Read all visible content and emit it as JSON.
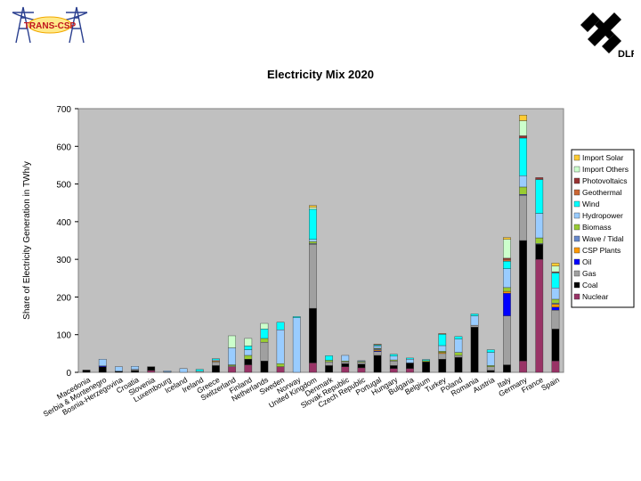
{
  "logos": {
    "left_text": "TRANS-CSP",
    "right_text": "DLR"
  },
  "chart_data": {
    "type": "bar",
    "stacked": true,
    "title": "Electricity Mix 2020",
    "xlabel": "",
    "ylabel": "Share of Electricity Generation in TWh/y",
    "ylim": [
      0,
      700
    ],
    "yticks": [
      0,
      100,
      200,
      300,
      400,
      500,
      600,
      700
    ],
    "grid": false,
    "plot_background": "#c0c0c0",
    "legend_position": "right",
    "categories": [
      "Macedonia",
      "Serbia & Montenegro",
      "Bosnia-Herzegovina",
      "Croatia",
      "Slovenia",
      "Luxembourg",
      "Iceland",
      "Ireland",
      "Greece",
      "Switzerland",
      "Finland",
      "Netherlands",
      "Sweden",
      "Norway",
      "United Kingdom",
      "Denmark",
      "Slovak Republic",
      "Czech Republic",
      "Portugal",
      "Hungary",
      "Bulgaria",
      "Belgium",
      "Turkey",
      "Poland",
      "Romania",
      "Austria",
      "Italy",
      "Germany",
      "France",
      "Spain"
    ],
    "series": [
      {
        "name": "Nuclear",
        "color": "#993366",
        "values": [
          0,
          0,
          0,
          0,
          5,
          0,
          0,
          0,
          0,
          15,
          20,
          0,
          15,
          0,
          25,
          0,
          15,
          12,
          0,
          10,
          10,
          0,
          0,
          0,
          0,
          0,
          0,
          30,
          300,
          30
        ]
      },
      {
        "name": "Coal",
        "color": "#000000",
        "values": [
          6,
          15,
          3,
          5,
          10,
          1,
          0,
          0,
          18,
          0,
          15,
          30,
          0,
          0,
          145,
          18,
          8,
          10,
          45,
          8,
          15,
          28,
          35,
          40,
          120,
          5,
          20,
          320,
          40,
          85
        ]
      },
      {
        "name": "Gas",
        "color": "#a0a0a0",
        "values": [
          0,
          0,
          0,
          3,
          0,
          0,
          0,
          3,
          10,
          2,
          0,
          50,
          0,
          0,
          170,
          10,
          5,
          5,
          10,
          12,
          0,
          0,
          15,
          5,
          5,
          10,
          130,
          120,
          0,
          50
        ]
      },
      {
        "name": "Oil",
        "color": "#0000ff",
        "values": [
          0,
          2,
          0,
          0,
          0,
          0,
          0,
          0,
          0,
          0,
          0,
          0,
          0,
          0,
          0,
          0,
          0,
          0,
          2,
          0,
          0,
          0,
          0,
          0,
          0,
          0,
          60,
          2,
          0,
          8
        ]
      },
      {
        "name": "CSP Plants",
        "color": "#ff9900",
        "values": [
          0,
          0,
          0,
          0,
          0,
          0,
          0,
          0,
          2,
          0,
          0,
          0,
          0,
          0,
          0,
          0,
          0,
          0,
          3,
          0,
          0,
          0,
          3,
          0,
          0,
          0,
          5,
          0,
          0,
          8
        ]
      },
      {
        "name": "Wave / Tidal",
        "color": "#6688cc",
        "values": [
          0,
          0,
          0,
          0,
          0,
          0,
          0,
          0,
          0,
          0,
          0,
          0,
          0,
          0,
          2,
          0,
          0,
          0,
          2,
          0,
          0,
          0,
          0,
          0,
          0,
          0,
          0,
          0,
          2,
          3
        ]
      },
      {
        "name": "Biomass",
        "color": "#99cc33",
        "values": [
          0,
          0,
          0,
          0,
          0,
          0,
          0,
          0,
          0,
          3,
          10,
          10,
          8,
          0,
          5,
          4,
          2,
          2,
          2,
          3,
          0,
          3,
          3,
          8,
          0,
          3,
          10,
          20,
          15,
          10
        ]
      },
      {
        "name": "Hydropower",
        "color": "#99ccff",
        "values": [
          0,
          18,
          12,
          8,
          0,
          3,
          10,
          0,
          3,
          45,
          15,
          0,
          90,
          145,
          6,
          0,
          15,
          2,
          6,
          10,
          10,
          0,
          15,
          35,
          25,
          35,
          50,
          30,
          65,
          30
        ]
      },
      {
        "name": "Wind",
        "color": "#00ffff",
        "values": [
          0,
          0,
          0,
          0,
          0,
          0,
          0,
          5,
          3,
          0,
          10,
          25,
          20,
          3,
          80,
          12,
          0,
          0,
          3,
          5,
          3,
          3,
          30,
          7,
          5,
          7,
          20,
          100,
          90,
          40
        ]
      },
      {
        "name": "Geothermal",
        "color": "#cc6633",
        "values": [
          0,
          0,
          0,
          0,
          0,
          0,
          0,
          0,
          0,
          0,
          0,
          0,
          0,
          0,
          0,
          0,
          0,
          0,
          2,
          0,
          0,
          0,
          2,
          0,
          0,
          0,
          5,
          0,
          0,
          0
        ]
      },
      {
        "name": "Photovoltaics",
        "color": "#993333",
        "values": [
          0,
          0,
          0,
          0,
          0,
          0,
          0,
          0,
          0,
          0,
          0,
          0,
          0,
          0,
          0,
          0,
          0,
          0,
          0,
          0,
          0,
          0,
          0,
          0,
          0,
          0,
          3,
          6,
          5,
          3
        ]
      },
      {
        "name": "Import Others",
        "color": "#ccffcc",
        "values": [
          0,
          0,
          0,
          0,
          0,
          0,
          0,
          0,
          0,
          32,
          20,
          15,
          0,
          0,
          5,
          0,
          0,
          0,
          0,
          0,
          0,
          0,
          0,
          0,
          0,
          0,
          50,
          40,
          0,
          15
        ]
      },
      {
        "name": "Import Solar",
        "color": "#ffcc33",
        "values": [
          0,
          0,
          0,
          0,
          0,
          0,
          0,
          0,
          0,
          0,
          0,
          0,
          0,
          0,
          5,
          0,
          0,
          0,
          0,
          0,
          0,
          0,
          0,
          0,
          0,
          0,
          5,
          15,
          0,
          8
        ]
      }
    ]
  }
}
